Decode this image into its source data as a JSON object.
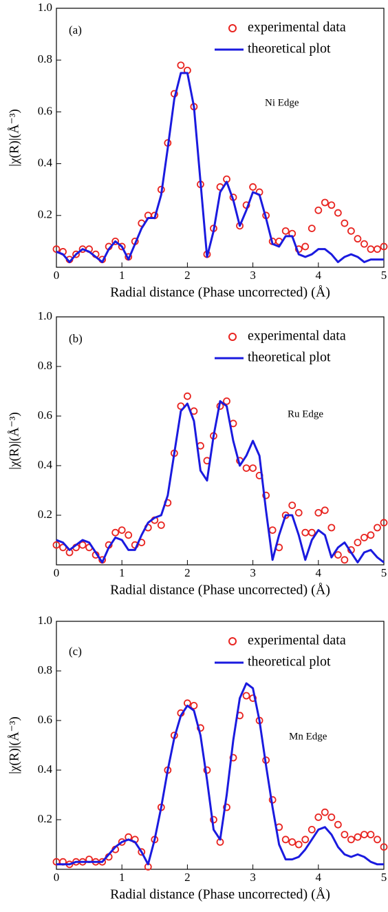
{
  "chart_data": [
    {
      "type": "line",
      "annotations": [
        "(a)",
        "Ni Edge"
      ],
      "x_label": "Radial distance (Phase uncorrected) (Å)",
      "y_label": "|χ(R)|(Å⁻³)",
      "x": [
        0,
        0.1,
        0.2,
        0.3,
        0.4,
        0.5,
        0.6,
        0.7,
        0.8,
        0.9,
        1.0,
        1.1,
        1.2,
        1.3,
        1.4,
        1.5,
        1.6,
        1.7,
        1.8,
        1.9,
        2.0,
        2.1,
        2.2,
        2.3,
        2.4,
        2.5,
        2.6,
        2.7,
        2.8,
        2.9,
        3.0,
        3.1,
        3.2,
        3.3,
        3.4,
        3.5,
        3.6,
        3.7,
        3.8,
        3.9,
        4.0,
        4.1,
        4.2,
        4.3,
        4.4,
        4.5,
        4.6,
        4.7,
        4.8,
        4.9,
        5.0
      ],
      "series": [
        {
          "name": "experimental data",
          "mode": "markers",
          "color": "#e8231f",
          "values": [
            0.07,
            0.06,
            0.03,
            0.05,
            0.07,
            0.07,
            0.05,
            0.03,
            0.08,
            0.1,
            0.08,
            0.04,
            0.1,
            0.17,
            0.2,
            0.2,
            0.3,
            0.48,
            0.67,
            0.78,
            0.76,
            0.62,
            0.32,
            0.05,
            0.15,
            0.31,
            0.34,
            0.27,
            0.16,
            0.24,
            0.31,
            0.29,
            0.2,
            0.1,
            0.1,
            0.14,
            0.13,
            0.07,
            0.08,
            0.15,
            0.22,
            0.25,
            0.24,
            0.21,
            0.17,
            0.14,
            0.11,
            0.09,
            0.07,
            0.07,
            0.08
          ]
        },
        {
          "name": "theoretical plot",
          "mode": "line",
          "color": "#1a1adf",
          "values": [
            0.06,
            0.05,
            0.02,
            0.05,
            0.07,
            0.06,
            0.04,
            0.02,
            0.07,
            0.1,
            0.08,
            0.03,
            0.09,
            0.15,
            0.19,
            0.19,
            0.28,
            0.46,
            0.65,
            0.75,
            0.75,
            0.62,
            0.33,
            0.04,
            0.14,
            0.29,
            0.33,
            0.26,
            0.16,
            0.22,
            0.29,
            0.28,
            0.19,
            0.09,
            0.08,
            0.12,
            0.12,
            0.05,
            0.04,
            0.05,
            0.07,
            0.07,
            0.05,
            0.02,
            0.04,
            0.05,
            0.04,
            0.02,
            0.03,
            0.03,
            0.03
          ]
        }
      ],
      "xlim": [
        0,
        5
      ],
      "ylim": [
        0,
        1
      ],
      "xticks": [
        0,
        1,
        2,
        3,
        4,
        5
      ],
      "yticks": [
        0.2,
        0.4,
        0.6,
        0.8,
        {
          "value": 1,
          "label": "1.0"
        }
      ],
      "legend": "upper right"
    },
    {
      "type": "line",
      "annotations": [
        "(b)",
        "Ru Edge"
      ],
      "x_label": "Radial distance (Phase uncorrected) (Å)",
      "y_label": "|χ(R)|(Å⁻³)",
      "x": [
        0,
        0.1,
        0.2,
        0.3,
        0.4,
        0.5,
        0.6,
        0.7,
        0.8,
        0.9,
        1.0,
        1.1,
        1.2,
        1.3,
        1.4,
        1.5,
        1.6,
        1.7,
        1.8,
        1.9,
        2.0,
        2.1,
        2.2,
        2.3,
        2.4,
        2.5,
        2.6,
        2.7,
        2.8,
        2.9,
        3.0,
        3.1,
        3.2,
        3.3,
        3.4,
        3.5,
        3.6,
        3.7,
        3.8,
        3.9,
        4.0,
        4.1,
        4.2,
        4.3,
        4.4,
        4.5,
        4.6,
        4.7,
        4.8,
        4.9,
        5.0
      ],
      "series": [
        {
          "name": "experimental data",
          "mode": "markers",
          "color": "#e8231f",
          "values": [
            0.08,
            0.07,
            0.05,
            0.07,
            0.08,
            0.07,
            0.04,
            0.02,
            0.08,
            0.13,
            0.14,
            0.12,
            0.08,
            0.09,
            0.15,
            0.18,
            0.16,
            0.25,
            0.45,
            0.64,
            0.68,
            0.62,
            0.48,
            0.42,
            0.52,
            0.64,
            0.66,
            0.57,
            0.42,
            0.39,
            0.39,
            0.36,
            0.28,
            0.14,
            0.07,
            0.2,
            0.24,
            0.21,
            0.13,
            0.13,
            0.21,
            0.22,
            0.15,
            0.04,
            0.02,
            0.06,
            0.09,
            0.11,
            0.12,
            0.15,
            0.17
          ]
        },
        {
          "name": "theoretical plot",
          "mode": "line",
          "color": "#1a1adf",
          "values": [
            0.1,
            0.09,
            0.06,
            0.08,
            0.1,
            0.09,
            0.05,
            0.01,
            0.07,
            0.11,
            0.1,
            0.06,
            0.06,
            0.12,
            0.17,
            0.19,
            0.2,
            0.28,
            0.45,
            0.62,
            0.65,
            0.58,
            0.38,
            0.34,
            0.52,
            0.66,
            0.64,
            0.5,
            0.4,
            0.44,
            0.5,
            0.44,
            0.22,
            0.02,
            0.12,
            0.2,
            0.2,
            0.12,
            0.02,
            0.1,
            0.14,
            0.12,
            0.03,
            0.07,
            0.09,
            0.05,
            0.01,
            0.05,
            0.06,
            0.03,
            0.01
          ]
        }
      ],
      "xlim": [
        0,
        5
      ],
      "ylim": [
        0,
        1
      ],
      "xticks": [
        0,
        1,
        2,
        3,
        4,
        5
      ],
      "yticks": [
        0.2,
        0.4,
        0.6,
        0.8,
        {
          "value": 1,
          "label": "1.0"
        }
      ],
      "legend": "upper right"
    },
    {
      "type": "line",
      "annotations": [
        "(c)",
        "Mn Edge"
      ],
      "x_label": "Radial distance (Phase uncorrected) (Å)",
      "y_label": "|χ(R)|(Å⁻³)",
      "x": [
        0,
        0.1,
        0.2,
        0.3,
        0.4,
        0.5,
        0.6,
        0.7,
        0.8,
        0.9,
        1.0,
        1.1,
        1.2,
        1.3,
        1.4,
        1.5,
        1.6,
        1.7,
        1.8,
        1.9,
        2.0,
        2.1,
        2.2,
        2.3,
        2.4,
        2.5,
        2.6,
        2.7,
        2.8,
        2.9,
        3.0,
        3.1,
        3.2,
        3.3,
        3.4,
        3.5,
        3.6,
        3.7,
        3.8,
        3.9,
        4.0,
        4.1,
        4.2,
        4.3,
        4.4,
        4.5,
        4.6,
        4.7,
        4.8,
        4.9,
        5.0
      ],
      "series": [
        {
          "name": "experimental data",
          "mode": "markers",
          "color": "#e8231f",
          "values": [
            0.03,
            0.03,
            0.02,
            0.03,
            0.03,
            0.04,
            0.03,
            0.03,
            0.05,
            0.08,
            0.11,
            0.13,
            0.12,
            0.07,
            0.01,
            0.12,
            0.25,
            0.4,
            0.54,
            0.63,
            0.67,
            0.66,
            0.57,
            0.4,
            0.2,
            0.11,
            0.25,
            0.45,
            0.62,
            0.7,
            0.69,
            0.6,
            0.44,
            0.28,
            0.17,
            0.12,
            0.11,
            0.1,
            0.12,
            0.16,
            0.21,
            0.23,
            0.21,
            0.18,
            0.14,
            0.12,
            0.13,
            0.14,
            0.14,
            0.12,
            0.09
          ]
        },
        {
          "name": "theoretical plot",
          "mode": "line",
          "color": "#1a1adf",
          "values": [
            0.02,
            0.02,
            0.02,
            0.03,
            0.03,
            0.03,
            0.03,
            0.03,
            0.06,
            0.09,
            0.11,
            0.12,
            0.11,
            0.07,
            0.02,
            0.12,
            0.25,
            0.4,
            0.53,
            0.62,
            0.66,
            0.64,
            0.54,
            0.36,
            0.16,
            0.12,
            0.3,
            0.52,
            0.69,
            0.75,
            0.73,
            0.6,
            0.42,
            0.25,
            0.1,
            0.04,
            0.04,
            0.05,
            0.08,
            0.12,
            0.16,
            0.17,
            0.14,
            0.09,
            0.06,
            0.05,
            0.06,
            0.05,
            0.03,
            0.02,
            0.02
          ]
        }
      ],
      "xlim": [
        0,
        5
      ],
      "ylim": [
        0,
        1
      ],
      "xticks": [
        0,
        1,
        2,
        3,
        4,
        5
      ],
      "yticks": [
        0.2,
        0.4,
        0.6,
        0.8,
        {
          "value": 1,
          "label": "1.0"
        }
      ],
      "legend": "upper right"
    }
  ]
}
